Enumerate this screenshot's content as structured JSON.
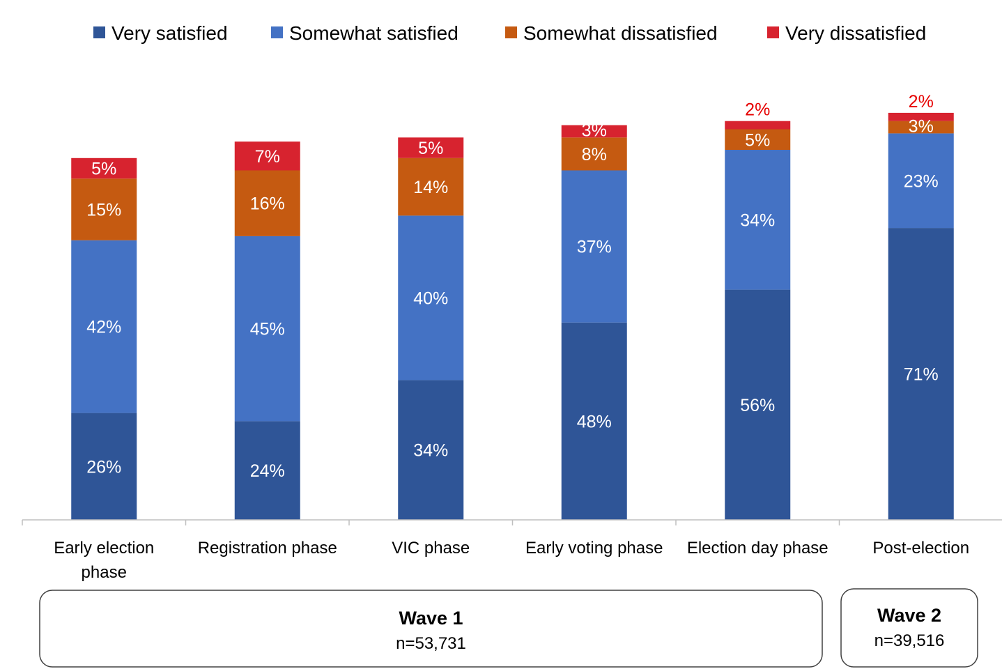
{
  "chart_data": {
    "type": "bar",
    "stacked": true,
    "categories": [
      [
        "Early election",
        "phase"
      ],
      [
        "Registration phase"
      ],
      [
        "VIC phase"
      ],
      [
        "Early voting phase"
      ],
      [
        "Election day phase"
      ],
      [
        "Post-election"
      ]
    ],
    "series": [
      {
        "name": "Very satisfied",
        "color": "#2F5597",
        "values": [
          26,
          24,
          34,
          48,
          56,
          71
        ],
        "labels": [
          "26%",
          "24%",
          "34%",
          "48%",
          "56%",
          "71%"
        ]
      },
      {
        "name": "Somewhat satisfied",
        "color": "#4472C4",
        "values": [
          42,
          45,
          40,
          37,
          34,
          23
        ],
        "labels": [
          "42%",
          "45%",
          "40%",
          "37%",
          "34%",
          "23%"
        ]
      },
      {
        "name": "Somewhat dissatisfied",
        "color": "#C55A11",
        "values": [
          15,
          16,
          14,
          8,
          5,
          3
        ],
        "labels": [
          "15%",
          "16%",
          "14%",
          "8%",
          "5%",
          "3%"
        ]
      },
      {
        "name": "Very dissatisfied",
        "color": "#D7232F",
        "values": [
          5,
          7,
          5,
          3,
          2,
          2
        ],
        "labels": [
          "5%",
          "7%",
          "5%",
          "3%",
          "2%",
          "2%"
        ]
      }
    ],
    "ylim": [
      0,
      100
    ],
    "title": "",
    "xlabel": "",
    "ylabel": "",
    "legend": "top",
    "grid": false,
    "label_colors": {
      "inside": "#FFFFFF",
      "above": "#E60000"
    },
    "groups": [
      {
        "title": "Wave 1",
        "n": "n=53,731",
        "categories": [
          0,
          1,
          2,
          3,
          4
        ]
      },
      {
        "title": "Wave 2",
        "n": "n=39,516",
        "categories": [
          5
        ]
      }
    ]
  }
}
